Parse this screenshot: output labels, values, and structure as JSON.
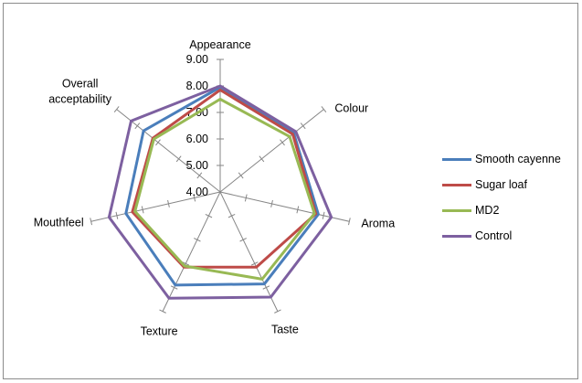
{
  "chart_data": {
    "type": "radar",
    "categories": [
      "Appearance",
      "Colour",
      "Aroma",
      "Taste",
      "Texture",
      "Mouthfeel",
      "Overall\nacceptability"
    ],
    "rlim": [
      4.0,
      9.0
    ],
    "tick_labels": [
      "4.00",
      "5.00",
      "6.00",
      "7.00",
      "8.00",
      "9.00"
    ],
    "legend_position": "right",
    "series": [
      {
        "name": "Smooth cayenne",
        "color": "#4a7ebb",
        "values": [
          7.95,
          7.55,
          7.8,
          7.85,
          7.9,
          7.65,
          7.7
        ]
      },
      {
        "name": "Sugar loaf",
        "color": "#be4b48",
        "values": [
          7.85,
          7.5,
          7.7,
          7.15,
          7.15,
          7.4,
          7.25
        ]
      },
      {
        "name": "MD2",
        "color": "#98b954",
        "values": [
          7.5,
          7.35,
          7.65,
          7.65,
          7.1,
          7.3,
          7.2
        ]
      },
      {
        "name": "Control",
        "color": "#7d60a0",
        "values": [
          8.0,
          7.65,
          8.3,
          8.4,
          8.45,
          8.3,
          8.3
        ]
      }
    ]
  },
  "legend": {
    "items": [
      {
        "label": "Smooth cayenne",
        "color": "#4a7ebb"
      },
      {
        "label": "Sugar loaf",
        "color": "#be4b48"
      },
      {
        "label": "MD2",
        "color": "#98b954"
      },
      {
        "label": "Control",
        "color": "#7d60a0"
      }
    ]
  }
}
